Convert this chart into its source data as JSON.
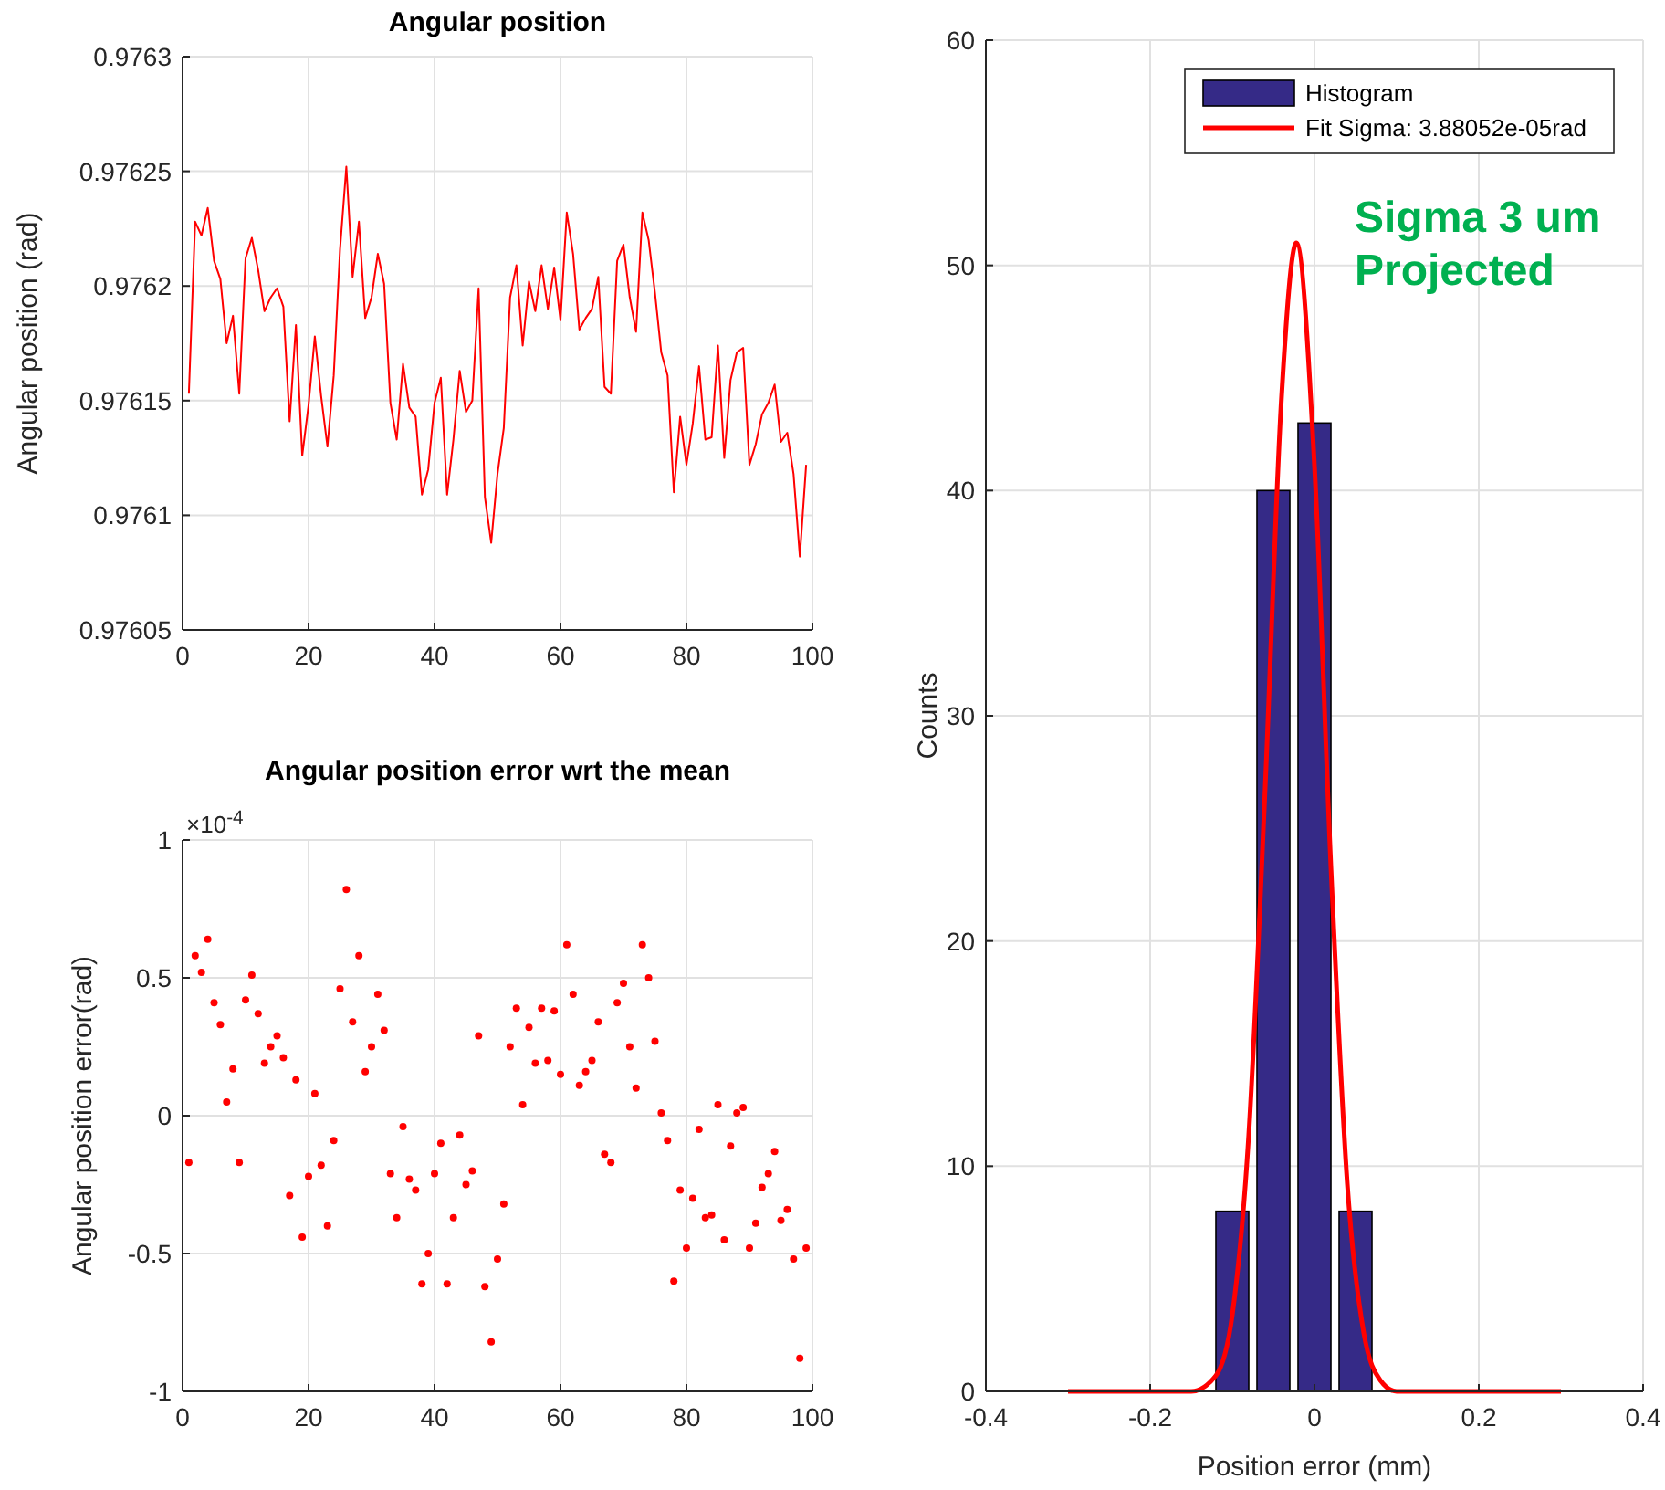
{
  "chart_data": [
    {
      "type": "line",
      "title": "Angular position",
      "ylabel": "Angular position (rad)",
      "xlim": [
        0,
        100
      ],
      "xticks": [
        0,
        20,
        40,
        60,
        80,
        100
      ],
      "ylim": [
        0.97605,
        0.9763
      ],
      "yticks": [
        0.97605,
        0.9761,
        0.97615,
        0.9762,
        0.97625,
        0.9763
      ],
      "grid": true,
      "x": [
        1,
        2,
        3,
        4,
        5,
        6,
        7,
        8,
        9,
        10,
        11,
        12,
        13,
        14,
        15,
        16,
        17,
        18,
        19,
        20,
        21,
        22,
        23,
        24,
        25,
        26,
        27,
        28,
        29,
        30,
        31,
        32,
        33,
        34,
        35,
        36,
        37,
        38,
        39,
        40,
        41,
        42,
        43,
        44,
        45,
        46,
        47,
        48,
        49,
        50,
        51,
        52,
        53,
        54,
        55,
        56,
        57,
        58,
        59,
        60,
        61,
        62,
        63,
        64,
        65,
        66,
        67,
        68,
        69,
        70,
        71,
        72,
        73,
        74,
        75,
        76,
        77,
        78,
        79,
        80,
        81,
        82,
        83,
        84,
        85,
        86,
        87,
        88,
        89,
        90,
        91,
        92,
        93,
        94,
        95,
        96,
        97,
        98,
        99
      ],
      "series": [
        {
          "color": "#ff0000",
          "values": [
            0.976153,
            0.976228,
            0.976222,
            0.976234,
            0.976211,
            0.976203,
            0.976175,
            0.976187,
            0.976153,
            0.976212,
            0.976221,
            0.976207,
            0.976189,
            0.976195,
            0.976199,
            0.976191,
            0.976141,
            0.976183,
            0.976126,
            0.976148,
            0.976178,
            0.976152,
            0.97613,
            0.976161,
            0.976216,
            0.976252,
            0.976204,
            0.976228,
            0.976186,
            0.976195,
            0.976214,
            0.976201,
            0.976149,
            0.976133,
            0.976166,
            0.976147,
            0.976143,
            0.976109,
            0.97612,
            0.976149,
            0.97616,
            0.976109,
            0.976133,
            0.976163,
            0.976145,
            0.97615,
            0.976199,
            0.976108,
            0.976088,
            0.976118,
            0.976138,
            0.976195,
            0.976209,
            0.976174,
            0.976202,
            0.976189,
            0.976209,
            0.97619,
            0.976208,
            0.976185,
            0.976232,
            0.976214,
            0.976181,
            0.976186,
            0.97619,
            0.976204,
            0.976156,
            0.976153,
            0.976211,
            0.976218,
            0.976195,
            0.97618,
            0.976232,
            0.97622,
            0.976197,
            0.976171,
            0.976161,
            0.97611,
            0.976143,
            0.976122,
            0.97614,
            0.976165,
            0.976133,
            0.976134,
            0.976174,
            0.976125,
            0.976159,
            0.976171,
            0.976173,
            0.976122,
            0.976131,
            0.976144,
            0.976149,
            0.976157,
            0.976132,
            0.976136,
            0.976118,
            0.976082,
            0.976122
          ]
        }
      ]
    },
    {
      "type": "scatter",
      "title": "Angular position error wrt the mean",
      "ylabel": "Angular position error(rad)",
      "annotations": [
        "×10$^{-4}$"
      ],
      "xlim": [
        0,
        100
      ],
      "xticks": [
        0,
        20,
        40,
        60,
        80,
        100
      ],
      "ylim": [
        -1,
        1
      ],
      "yticks": [
        -1,
        -0.5,
        0,
        0.5,
        1
      ],
      "grid": true,
      "marker": "circle",
      "color": "#ff0000",
      "x": [
        1,
        2,
        3,
        4,
        5,
        6,
        7,
        8,
        9,
        10,
        11,
        12,
        13,
        14,
        15,
        16,
        17,
        18,
        19,
        20,
        21,
        22,
        23,
        24,
        25,
        26,
        27,
        28,
        29,
        30,
        31,
        32,
        33,
        34,
        35,
        36,
        37,
        38,
        39,
        40,
        41,
        42,
        43,
        44,
        45,
        46,
        47,
        48,
        49,
        50,
        51,
        52,
        53,
        54,
        55,
        56,
        57,
        58,
        59,
        60,
        61,
        62,
        63,
        64,
        65,
        66,
        67,
        68,
        69,
        70,
        71,
        72,
        73,
        74,
        75,
        76,
        77,
        78,
        79,
        80,
        81,
        82,
        83,
        84,
        85,
        86,
        87,
        88,
        89,
        90,
        91,
        92,
        93,
        94,
        95,
        96,
        97,
        98,
        99
      ],
      "values": [
        -0.17,
        0.58,
        0.52,
        0.64,
        0.41,
        0.33,
        0.05,
        0.17,
        -0.17,
        0.42,
        0.51,
        0.37,
        0.19,
        0.25,
        0.29,
        0.21,
        -0.29,
        0.13,
        -0.44,
        -0.22,
        0.08,
        -0.18,
        -0.4,
        -0.09,
        0.46,
        0.82,
        0.34,
        0.58,
        0.16,
        0.25,
        0.44,
        0.31,
        -0.21,
        -0.37,
        -0.04,
        -0.23,
        -0.27,
        -0.61,
        -0.5,
        -0.21,
        -0.1,
        -0.61,
        -0.37,
        -0.07,
        -0.25,
        -0.2,
        0.29,
        -0.62,
        -0.82,
        -0.52,
        -0.32,
        0.25,
        0.39,
        0.04,
        0.32,
        0.19,
        0.39,
        0.2,
        0.38,
        0.15,
        0.62,
        0.44,
        0.11,
        0.16,
        0.2,
        0.34,
        -0.14,
        -0.17,
        0.41,
        0.48,
        0.25,
        0.1,
        0.62,
        0.5,
        0.27,
        0.01,
        -0.09,
        -0.6,
        -0.27,
        -0.48,
        -0.3,
        -0.05,
        -0.37,
        -0.36,
        0.04,
        -0.45,
        -0.11,
        0.01,
        0.03,
        -0.48,
        -0.39,
        -0.26,
        -0.21,
        -0.13,
        -0.38,
        -0.34,
        -0.52,
        -0.88,
        -0.48
      ]
    },
    {
      "type": "histogram",
      "xlabel": "Position error (mm)",
      "ylabel": "Counts",
      "annotations": [
        "Sigma 3 um\nProjected"
      ],
      "xlim": [
        -0.4,
        0.4
      ],
      "xticks": [
        -0.4,
        -0.2,
        0,
        0.2,
        0.4
      ],
      "ylim": [
        0,
        60
      ],
      "yticks": [
        0,
        10,
        20,
        30,
        40,
        50,
        60
      ],
      "grid": true,
      "legend": "top right",
      "bins": [
        -0.125,
        -0.075,
        -0.025,
        0.025,
        0.075
      ],
      "series": [
        {
          "name": "Histogram",
          "color": "#352a87",
          "values": [
            8,
            40,
            43,
            8
          ]
        },
        {
          "name": "Fit Sigma: 3.88052e-05rad",
          "type": "line",
          "color": "#ff0000",
          "x": [
            -0.3,
            -0.2,
            -0.15,
            -0.12,
            -0.1,
            -0.08,
            -0.06,
            -0.04,
            -0.022,
            0,
            0.02,
            0.04,
            0.06,
            0.08,
            0.1,
            0.15,
            0.3
          ],
          "values": [
            0,
            0,
            0,
            0.7,
            3.4,
            11.4,
            26.8,
            44.2,
            51,
            41.1,
            23.3,
            9.2,
            2.6,
            0.5,
            0,
            0,
            0
          ]
        }
      ]
    }
  ]
}
